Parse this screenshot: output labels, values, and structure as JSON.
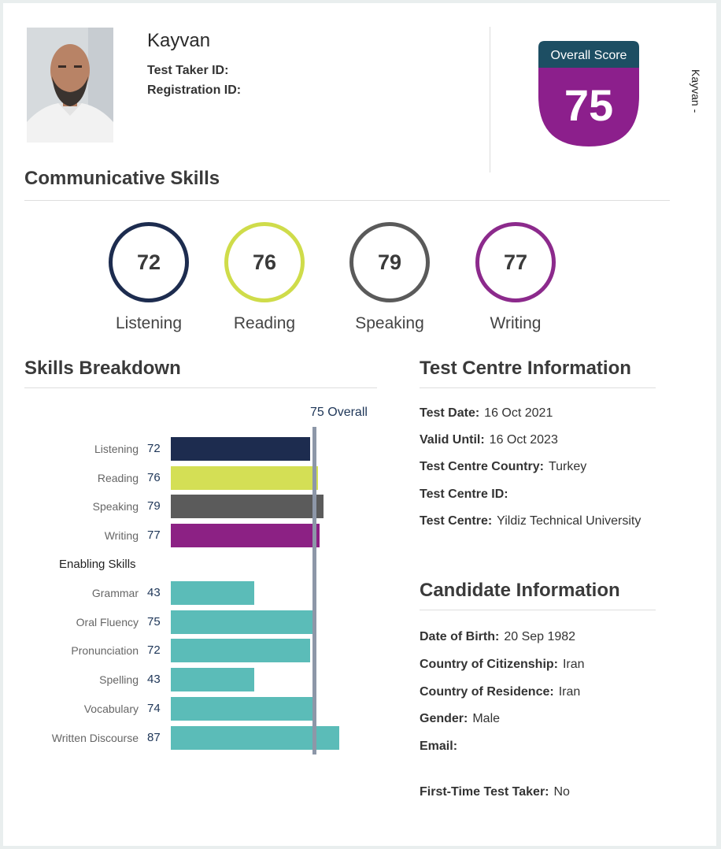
{
  "header": {
    "name": "Kayvan",
    "test_taker_id_label": "Test Taker ID:",
    "registration_id_label": "Registration ID:",
    "overall_score_label": "Overall Score",
    "overall_score": "75",
    "side_name": "Kayvan -"
  },
  "communicative": {
    "title": "Communicative Skills",
    "skills": [
      {
        "label": "Listening",
        "score": "72",
        "color": "#1d2c4f"
      },
      {
        "label": "Reading",
        "score": "76",
        "color": "#cfdc4a"
      },
      {
        "label": "Speaking",
        "score": "79",
        "color": "#5a5a5a"
      },
      {
        "label": "Writing",
        "score": "77",
        "color": "#8c2a8c"
      }
    ]
  },
  "breakdown": {
    "title": "Skills Breakdown",
    "overall_label": "75 Overall",
    "overall_value": 75,
    "enabling_label": "Enabling Skills",
    "communicative_rows": [
      {
        "label": "Listening",
        "score": "72",
        "value": 72,
        "color": "#1d2c4f"
      },
      {
        "label": "Reading",
        "score": "76",
        "value": 76,
        "color": "#d4df55"
      },
      {
        "label": "Speaking",
        "score": "79",
        "value": 79,
        "color": "#5b5b5b"
      },
      {
        "label": "Writing",
        "score": "77",
        "value": 77,
        "color": "#8c2184"
      }
    ],
    "enabling_rows": [
      {
        "label": "Grammar",
        "score": "43",
        "value": 43,
        "color": "#5bbcb8"
      },
      {
        "label": "Oral Fluency",
        "score": "75",
        "value": 75,
        "color": "#5bbcb8"
      },
      {
        "label": "Pronunciation",
        "score": "72",
        "value": 72,
        "color": "#5bbcb8"
      },
      {
        "label": "Spelling",
        "score": "43",
        "value": 43,
        "color": "#5bbcb8"
      },
      {
        "label": "Vocabulary",
        "score": "74",
        "value": 74,
        "color": "#5bbcb8"
      },
      {
        "label": "Written Discourse",
        "score": "87",
        "value": 87,
        "color": "#5bbcb8"
      }
    ]
  },
  "test_centre": {
    "title": "Test Centre Information",
    "rows": [
      {
        "label": "Test Date:",
        "value": "16 Oct 2021"
      },
      {
        "label": "Valid Until:",
        "value": "16 Oct 2023"
      },
      {
        "label": "Test Centre Country:",
        "value": "Turkey"
      },
      {
        "label": "Test Centre ID:",
        "value": ""
      },
      {
        "label": "Test Centre:",
        "value": "Yildiz Technical University"
      }
    ]
  },
  "candidate": {
    "title": "Candidate Information",
    "rows": [
      {
        "label": "Date of Birth:",
        "value": "20 Sep 1982"
      },
      {
        "label": "Country of Citizenship:",
        "value": "Iran"
      },
      {
        "label": "Country of Residence:",
        "value": "Iran"
      },
      {
        "label": "Gender:",
        "value": "Male"
      },
      {
        "label": "Email:",
        "value": ""
      },
      {
        "label": "First-Time Test Taker:",
        "value": "No"
      }
    ]
  },
  "colors": {
    "badge_top": "#1d4e63",
    "badge_body": "#8c1f8c",
    "overall_line": "#8d97a8"
  }
}
